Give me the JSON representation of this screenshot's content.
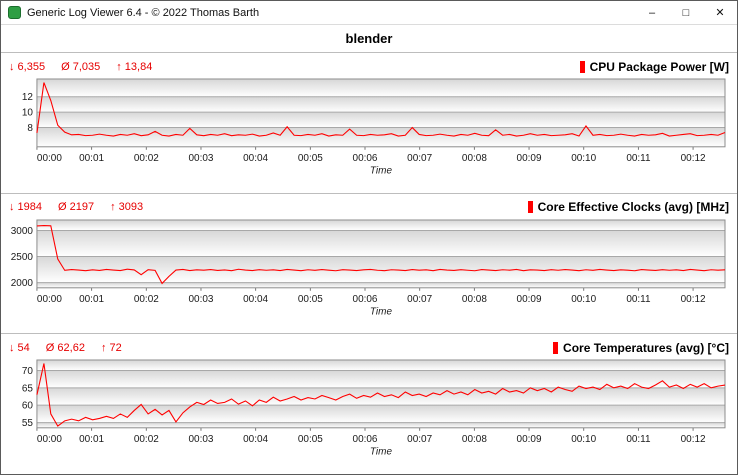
{
  "window": {
    "title": "Generic Log Viewer 6.4 - © 2022 Thomas Barth",
    "controls": {
      "minimize": "–",
      "maximize": "□",
      "close": "✕"
    }
  },
  "header": {
    "title": "blender"
  },
  "time_axis": {
    "label": "Time",
    "duration_seconds": 755,
    "ticks": [
      "00:00",
      "00:01",
      "00:02",
      "00:03",
      "00:04",
      "00:05",
      "00:06",
      "00:07",
      "00:08",
      "00:09",
      "00:10",
      "00:11",
      "00:12"
    ]
  },
  "chart_data": [
    {
      "type": "line",
      "title": "CPU Package Power [W]",
      "color": "#ff0000",
      "stats": {
        "min_label": "↓ 6,355",
        "avg_label": "Ø 7,035",
        "max_label": "↑ 13,84"
      },
      "ylim": [
        5.5,
        14.3
      ],
      "y_ticks": [
        8,
        10,
        12
      ],
      "values": [
        7.3,
        13.84,
        11.5,
        8.3,
        7.4,
        7.05,
        7.1,
        6.95,
        7.0,
        7.15,
        7.0,
        6.9,
        7.1,
        7.0,
        7.2,
        6.95,
        7.05,
        7.5,
        7.0,
        6.9,
        7.1,
        7.0,
        7.9,
        7.05,
        6.95,
        7.1,
        7.0,
        7.2,
        6.95,
        7.05,
        7.0,
        7.15,
        6.9,
        7.0,
        7.3,
        7.0,
        8.1,
        7.0,
        6.95,
        7.1,
        7.0,
        7.2,
        6.9,
        7.05,
        7.0,
        7.8,
        7.0,
        6.95,
        7.1,
        7.0,
        7.05,
        7.2,
        6.9,
        7.0,
        8.0,
        7.1,
        6.95,
        7.0,
        7.15,
        7.0,
        6.9,
        7.1,
        7.0,
        7.25,
        7.0,
        6.95,
        7.7,
        7.0,
        7.1,
        6.9,
        7.0,
        7.2,
        7.0,
        7.1,
        6.95,
        7.0,
        7.05,
        7.2,
        6.9,
        8.2,
        7.0,
        7.1,
        6.95,
        7.0,
        7.15,
        7.0,
        6.9,
        7.1,
        7.0,
        7.05,
        7.25,
        6.9,
        7.0,
        7.1,
        7.2,
        6.95,
        7.0,
        7.1,
        7.0,
        7.35
      ]
    },
    {
      "type": "line",
      "title": "Core Effective Clocks (avg) [MHz]",
      "color": "#ff0000",
      "stats": {
        "min_label": "↓ 1984",
        "avg_label": "Ø 2197",
        "max_label": "↑ 3093"
      },
      "ylim": [
        1900,
        3200
      ],
      "y_ticks": [
        2000,
        2500,
        3000
      ],
      "values": [
        3085,
        3093,
        3090,
        2450,
        2235,
        2250,
        2240,
        2228,
        2245,
        2232,
        2252,
        2240,
        2230,
        2258,
        2242,
        2150,
        2248,
        2235,
        1984,
        2120,
        2240,
        2252,
        2230,
        2245,
        2238,
        2250,
        2232,
        2242,
        2228,
        2255,
        2240,
        2230,
        2248,
        2236,
        2244,
        2230,
        2252,
        2240,
        2228,
        2246,
        2234,
        2250,
        2238,
        2226,
        2248,
        2240,
        2230,
        2244,
        2252,
        2236,
        2228,
        2246,
        2240,
        2230,
        2250,
        2238,
        2244,
        2228,
        2252,
        2240,
        2232,
        2248,
        2236,
        2226,
        2250,
        2240,
        2230,
        2246,
        2238,
        2252,
        2228,
        2244,
        2240,
        2230,
        2248,
        2236,
        2250,
        2240,
        2228,
        2246,
        2234,
        2252,
        2240,
        2230,
        2244,
        2238,
        2226,
        2250,
        2240,
        2232,
        2248,
        2236,
        2244,
        2230,
        2252,
        2240,
        2228,
        2246,
        2238,
        2244
      ]
    },
    {
      "type": "line",
      "title": "Core Temperatures (avg) [°C]",
      "color": "#ff0000",
      "stats": {
        "min_label": "↓ 54",
        "avg_label": "Ø 62,62",
        "max_label": "↑ 72"
      },
      "ylim": [
        53.5,
        73
      ],
      "y_ticks": [
        55,
        60,
        65,
        70
      ],
      "values": [
        63,
        72,
        57.5,
        54,
        55.5,
        56,
        55.5,
        56.5,
        55.8,
        56.2,
        56.8,
        56.2,
        57.5,
        56.5,
        58.5,
        60.2,
        57.5,
        58.8,
        57.2,
        58.5,
        55.2,
        57.8,
        59.5,
        60.8,
        60.2,
        61.5,
        60.5,
        60.8,
        61.8,
        60.3,
        61.2,
        59.8,
        61.5,
        60.8,
        62.3,
        61.2,
        61.8,
        62.5,
        61.5,
        62.2,
        61.8,
        62.8,
        62.2,
        61.5,
        62.5,
        63.2,
        62.0,
        62.8,
        62.3,
        63.5,
        62.5,
        63.0,
        62.2,
        63.8,
        62.8,
        63.2,
        62.5,
        63.5,
        63.0,
        64.2,
        63.2,
        63.8,
        63.0,
        64.5,
        63.5,
        64.0,
        63.2,
        64.8,
        63.8,
        64.2,
        63.5,
        65.0,
        64.2,
        64.8,
        63.8,
        65.2,
        64.5,
        64.0,
        65.5,
        64.8,
        65.2,
        64.5,
        66.0,
        65.0,
        65.5,
        64.8,
        66.2,
        65.2,
        64.8,
        65.8,
        67.0,
        65.2,
        65.8,
        64.8,
        66.0,
        65.2,
        66.2,
        65.0,
        65.5,
        65.8
      ]
    }
  ]
}
